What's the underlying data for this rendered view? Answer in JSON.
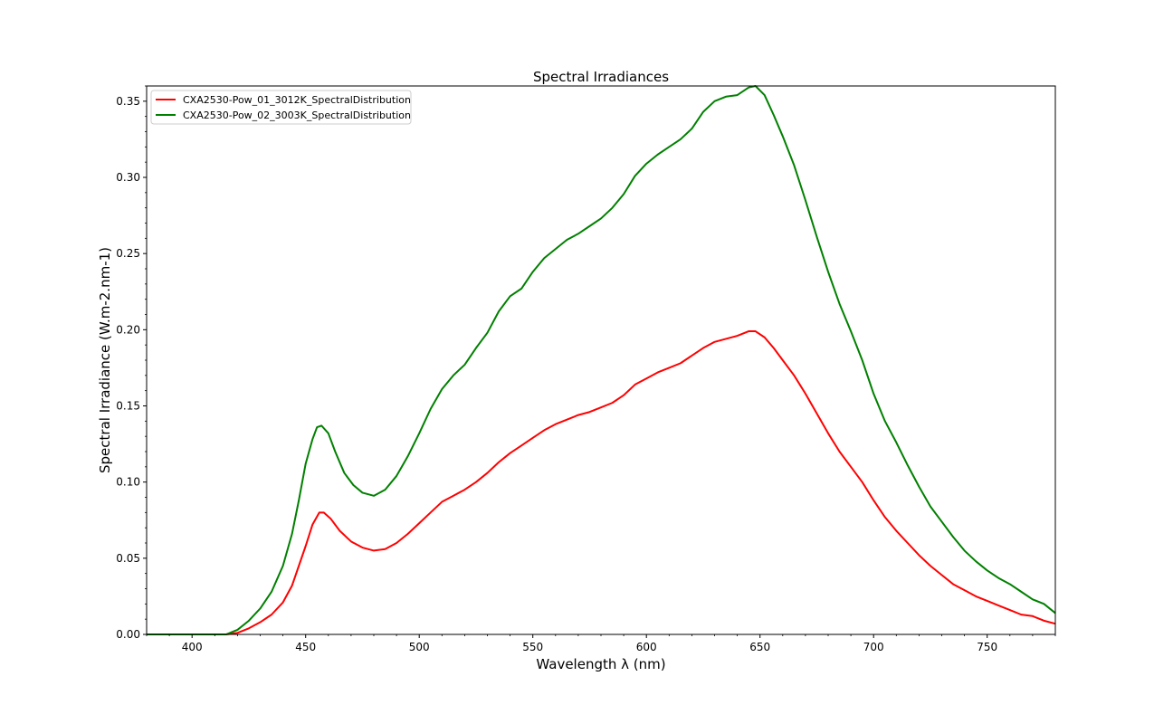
{
  "chart_data": {
    "type": "line",
    "title": "Spectral Irradiances",
    "xlabel": "Wavelength λ (nm)",
    "ylabel": "Spectral Irradiance (W.m-2.nm-1)",
    "xlim": [
      380,
      780
    ],
    "ylim": [
      0,
      0.36
    ],
    "x_ticks": [
      400,
      450,
      500,
      550,
      600,
      650,
      700,
      750
    ],
    "x_tick_labels": [
      "400",
      "450",
      "500",
      "550",
      "600",
      "650",
      "700",
      "750"
    ],
    "y_ticks": [
      0,
      0.05,
      0.1,
      0.15,
      0.2,
      0.25,
      0.3,
      0.35
    ],
    "y_tick_labels": [
      "0.00",
      "0.05",
      "0.10",
      "0.15",
      "0.20",
      "0.25",
      "0.30",
      "0.35"
    ],
    "grid": false,
    "legend_position": "upper-left",
    "series": [
      {
        "name": "CXA2530-Pow_01_3012K_SpectralDistribution",
        "color": "#ff0000",
        "points": [
          [
            380,
            0
          ],
          [
            400,
            0
          ],
          [
            415,
            0.0
          ],
          [
            420,
            0.001
          ],
          [
            425,
            0.004
          ],
          [
            430,
            0.008
          ],
          [
            435,
            0.013
          ],
          [
            440,
            0.021
          ],
          [
            444,
            0.032
          ],
          [
            447,
            0.045
          ],
          [
            450,
            0.058
          ],
          [
            453,
            0.072
          ],
          [
            456,
            0.08
          ],
          [
            458,
            0.08
          ],
          [
            461,
            0.076
          ],
          [
            465,
            0.068
          ],
          [
            470,
            0.061
          ],
          [
            475,
            0.057
          ],
          [
            480,
            0.055
          ],
          [
            485,
            0.056
          ],
          [
            490,
            0.06
          ],
          [
            495,
            0.066
          ],
          [
            500,
            0.073
          ],
          [
            505,
            0.08
          ],
          [
            510,
            0.087
          ],
          [
            515,
            0.091
          ],
          [
            520,
            0.095
          ],
          [
            525,
            0.1
          ],
          [
            530,
            0.106
          ],
          [
            535,
            0.113
          ],
          [
            540,
            0.119
          ],
          [
            545,
            0.124
          ],
          [
            550,
            0.129
          ],
          [
            555,
            0.134
          ],
          [
            560,
            0.138
          ],
          [
            565,
            0.141
          ],
          [
            570,
            0.144
          ],
          [
            575,
            0.146
          ],
          [
            580,
            0.149
          ],
          [
            585,
            0.152
          ],
          [
            590,
            0.157
          ],
          [
            595,
            0.164
          ],
          [
            600,
            0.168
          ],
          [
            605,
            0.172
          ],
          [
            610,
            0.175
          ],
          [
            615,
            0.178
          ],
          [
            620,
            0.183
          ],
          [
            625,
            0.188
          ],
          [
            630,
            0.192
          ],
          [
            635,
            0.194
          ],
          [
            640,
            0.196
          ],
          [
            645,
            0.199
          ],
          [
            648,
            0.199
          ],
          [
            652,
            0.195
          ],
          [
            656,
            0.188
          ],
          [
            660,
            0.18
          ],
          [
            665,
            0.17
          ],
          [
            670,
            0.158
          ],
          [
            675,
            0.145
          ],
          [
            680,
            0.132
          ],
          [
            685,
            0.12
          ],
          [
            690,
            0.11
          ],
          [
            695,
            0.1
          ],
          [
            700,
            0.088
          ],
          [
            705,
            0.077
          ],
          [
            710,
            0.068
          ],
          [
            715,
            0.06
          ],
          [
            720,
            0.052
          ],
          [
            725,
            0.045
          ],
          [
            730,
            0.039
          ],
          [
            735,
            0.033
          ],
          [
            740,
            0.029
          ],
          [
            745,
            0.025
          ],
          [
            750,
            0.022
          ],
          [
            755,
            0.019
          ],
          [
            760,
            0.016
          ],
          [
            765,
            0.013
          ],
          [
            770,
            0.012
          ],
          [
            775,
            0.009
          ],
          [
            780,
            0.007
          ]
        ]
      },
      {
        "name": "CXA2530-Pow_02_3003K_SpectralDistribution",
        "color": "#008000",
        "points": [
          [
            380,
            0
          ],
          [
            400,
            0
          ],
          [
            415,
            0.0
          ],
          [
            420,
            0.003
          ],
          [
            425,
            0.009
          ],
          [
            430,
            0.017
          ],
          [
            435,
            0.028
          ],
          [
            440,
            0.045
          ],
          [
            444,
            0.066
          ],
          [
            447,
            0.088
          ],
          [
            450,
            0.112
          ],
          [
            453,
            0.128
          ],
          [
            455,
            0.136
          ],
          [
            457,
            0.137
          ],
          [
            460,
            0.132
          ],
          [
            463,
            0.12
          ],
          [
            467,
            0.106
          ],
          [
            471,
            0.098
          ],
          [
            475,
            0.093
          ],
          [
            480,
            0.091
          ],
          [
            485,
            0.095
          ],
          [
            490,
            0.104
          ],
          [
            495,
            0.117
          ],
          [
            500,
            0.132
          ],
          [
            505,
            0.148
          ],
          [
            510,
            0.161
          ],
          [
            515,
            0.17
          ],
          [
            520,
            0.177
          ],
          [
            525,
            0.188
          ],
          [
            530,
            0.198
          ],
          [
            535,
            0.212
          ],
          [
            540,
            0.222
          ],
          [
            545,
            0.227
          ],
          [
            550,
            0.238
          ],
          [
            555,
            0.247
          ],
          [
            560,
            0.253
          ],
          [
            565,
            0.259
          ],
          [
            570,
            0.263
          ],
          [
            575,
            0.268
          ],
          [
            580,
            0.273
          ],
          [
            585,
            0.28
          ],
          [
            590,
            0.289
          ],
          [
            595,
            0.301
          ],
          [
            600,
            0.309
          ],
          [
            605,
            0.315
          ],
          [
            610,
            0.32
          ],
          [
            615,
            0.325
          ],
          [
            620,
            0.332
          ],
          [
            625,
            0.343
          ],
          [
            630,
            0.35
          ],
          [
            635,
            0.353
          ],
          [
            640,
            0.354
          ],
          [
            645,
            0.359
          ],
          [
            648,
            0.36
          ],
          [
            652,
            0.354
          ],
          [
            656,
            0.341
          ],
          [
            660,
            0.327
          ],
          [
            665,
            0.308
          ],
          [
            670,
            0.285
          ],
          [
            675,
            0.261
          ],
          [
            680,
            0.238
          ],
          [
            685,
            0.217
          ],
          [
            690,
            0.199
          ],
          [
            695,
            0.18
          ],
          [
            700,
            0.158
          ],
          [
            705,
            0.14
          ],
          [
            710,
            0.126
          ],
          [
            715,
            0.111
          ],
          [
            720,
            0.097
          ],
          [
            725,
            0.084
          ],
          [
            730,
            0.074
          ],
          [
            735,
            0.064
          ],
          [
            740,
            0.055
          ],
          [
            745,
            0.048
          ],
          [
            750,
            0.042
          ],
          [
            755,
            0.037
          ],
          [
            760,
            0.033
          ],
          [
            765,
            0.028
          ],
          [
            770,
            0.023
          ],
          [
            775,
            0.02
          ],
          [
            780,
            0.014
          ]
        ]
      }
    ]
  }
}
